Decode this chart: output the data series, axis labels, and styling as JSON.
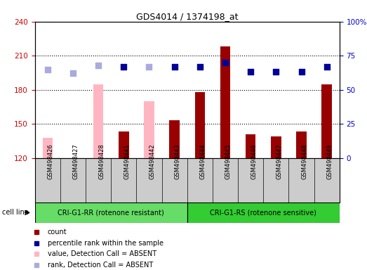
{
  "title": "GDS4014 / 1374198_at",
  "samples": [
    "GSM498426",
    "GSM498427",
    "GSM498428",
    "GSM498441",
    "GSM498442",
    "GSM498443",
    "GSM498444",
    "GSM498445",
    "GSM498446",
    "GSM498447",
    "GSM498448",
    "GSM498449"
  ],
  "bar_values": [
    null,
    null,
    null,
    143,
    null,
    153,
    178,
    218,
    141,
    139,
    143,
    185
  ],
  "bar_absent": [
    138,
    120,
    185,
    null,
    170,
    null,
    null,
    null,
    null,
    null,
    null,
    null
  ],
  "rank_values": [
    null,
    null,
    null,
    67,
    null,
    67,
    67,
    70,
    63,
    63,
    63,
    67
  ],
  "rank_absent": [
    65,
    62,
    68,
    null,
    67,
    null,
    null,
    null,
    null,
    null,
    null,
    null
  ],
  "ylim_left": [
    120,
    240
  ],
  "ylim_right": [
    0,
    100
  ],
  "yticks_left": [
    120,
    150,
    180,
    210,
    240
  ],
  "yticks_right": [
    0,
    25,
    50,
    75,
    100
  ],
  "ytick_right_labels": [
    "0",
    "25",
    "50",
    "75",
    "100%"
  ],
  "groups": [
    {
      "label": "CRI-G1-RR (rotenone resistant)",
      "color": "#66DD66",
      "n": 6
    },
    {
      "label": "CRI-G1-RS (rotenone sensitive)",
      "color": "#33CC33",
      "n": 6
    }
  ],
  "group_label": "cell line",
  "color_bar_present": "#990000",
  "color_bar_absent": "#FFB6C1",
  "color_rank_present": "#000099",
  "color_rank_absent": "#AAAADD",
  "legend": [
    {
      "color": "#990000",
      "label": "count"
    },
    {
      "color": "#000099",
      "label": "percentile rank within the sample"
    },
    {
      "color": "#FFB6C1",
      "label": "value, Detection Call = ABSENT"
    },
    {
      "color": "#AAAADD",
      "label": "rank, Detection Call = ABSENT"
    }
  ],
  "bar_width": 0.4,
  "tick_color_left": "#CC0000",
  "tick_color_right": "#0000CC",
  "xlabel_area_color": "#CCCCCC",
  "group_area_color_light": "#66DD66",
  "group_area_color_dark": "#33BB33"
}
